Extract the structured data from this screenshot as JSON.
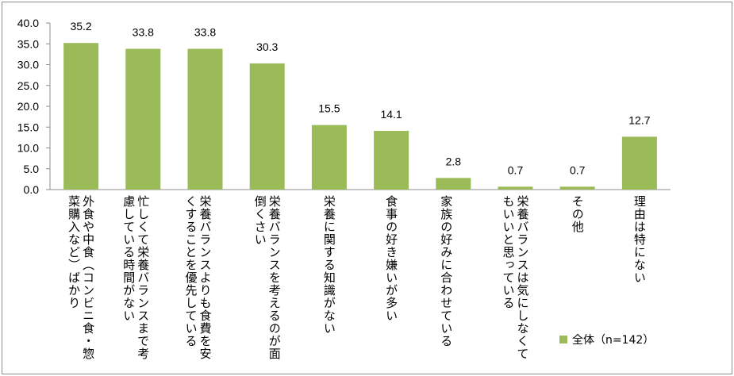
{
  "chart_data": {
    "type": "bar",
    "categories": [
      "外食や中食（コンビニ食・惣菜購入など）ばかり",
      "忙しくて栄養バランスまで考慮している時間がない",
      "栄養バランスよりも食費を安くすることを優先している",
      "栄養バランスを考えるのが面倒くさい",
      "栄養に関する知識がない",
      "食事の好き嫌いが多い",
      "家族の好みに合わせている",
      "栄養バランスは気にしなくてもいいと思っている",
      "その他",
      "理由は特にない"
    ],
    "series": [
      {
        "name": "全体（n=142）",
        "values": [
          35.2,
          33.8,
          33.8,
          30.3,
          15.5,
          14.1,
          2.8,
          0.7,
          0.7,
          12.7
        ]
      }
    ],
    "data_labels": [
      "35.2",
      "33.8",
      "33.8",
      "30.3",
      "15.5",
      "14.1",
      "2.8",
      "0.7",
      "0.7",
      "12.7"
    ],
    "ylim": [
      0,
      40
    ],
    "yticks": [
      "0.0",
      "5.0",
      "10.0",
      "15.0",
      "20.0",
      "25.0",
      "30.0",
      "35.0",
      "40.0"
    ],
    "bar_color": "#9bbb59",
    "grid": false,
    "legend_position": "bottom-right",
    "title": "",
    "xlabel": "",
    "ylabel": ""
  },
  "legend": {
    "label": "全体（n=142）"
  }
}
